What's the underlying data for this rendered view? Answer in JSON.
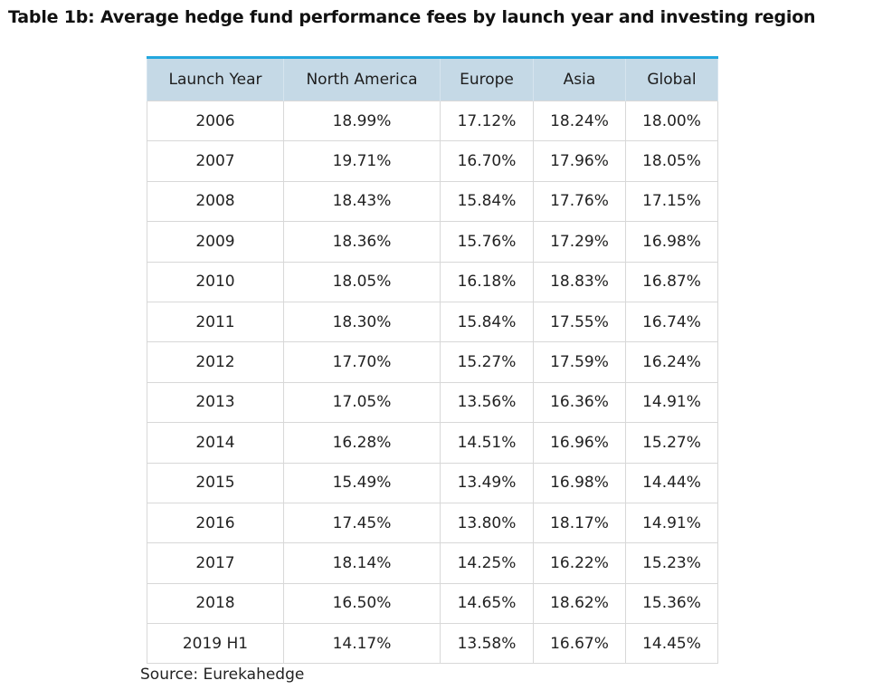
{
  "title": "Table 1b: Average hedge fund performance fees by launch year and investing region",
  "table": {
    "columns": [
      "Launch Year",
      "North America",
      "Europe",
      "Asia",
      "Global"
    ],
    "rows": [
      [
        "2006",
        "18.99%",
        "17.12%",
        "18.24%",
        "18.00%"
      ],
      [
        "2007",
        "19.71%",
        "16.70%",
        "17.96%",
        "18.05%"
      ],
      [
        "2008",
        "18.43%",
        "15.84%",
        "17.76%",
        "17.15%"
      ],
      [
        "2009",
        "18.36%",
        "15.76%",
        "17.29%",
        "16.98%"
      ],
      [
        "2010",
        "18.05%",
        "16.18%",
        "18.83%",
        "16.87%"
      ],
      [
        "2011",
        "18.30%",
        "15.84%",
        "17.55%",
        "16.74%"
      ],
      [
        "2012",
        "17.70%",
        "15.27%",
        "17.59%",
        "16.24%"
      ],
      [
        "2013",
        "17.05%",
        "13.56%",
        "16.36%",
        "14.91%"
      ],
      [
        "2014",
        "16.28%",
        "14.51%",
        "16.96%",
        "15.27%"
      ],
      [
        "2015",
        "15.49%",
        "13.49%",
        "16.98%",
        "14.44%"
      ],
      [
        "2016",
        "17.45%",
        "13.80%",
        "18.17%",
        "14.91%"
      ],
      [
        "2017",
        "18.14%",
        "14.25%",
        "16.22%",
        "15.23%"
      ],
      [
        "2018",
        "16.50%",
        "14.65%",
        "18.62%",
        "15.36%"
      ],
      [
        "2019 H1",
        "14.17%",
        "13.58%",
        "16.67%",
        "14.45%"
      ]
    ]
  },
  "source": "Source: Eurekahedge",
  "colors": {
    "header_background": "#c5d9e6",
    "header_top_border": "#23a7de",
    "grid_lines": "#d8d8d8"
  }
}
